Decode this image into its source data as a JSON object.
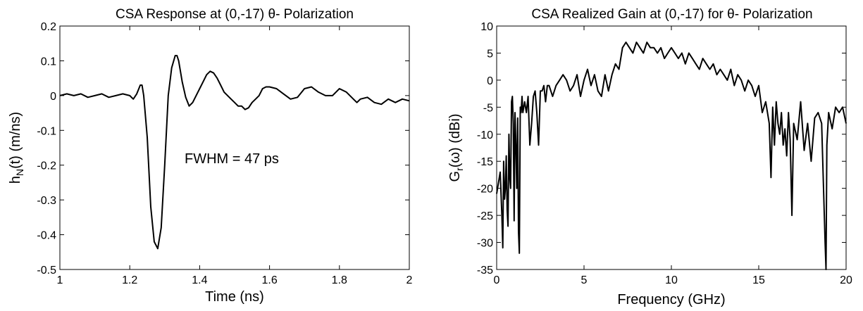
{
  "chart_data": [
    {
      "type": "line",
      "title": "CSA Response at (0,-17) θ- Polarization",
      "xlabel": "Time (ns)",
      "ylabel": "hN(t) (m/ns)",
      "ylabel_main": "h",
      "ylabel_sub": "N",
      "ylabel_rest": "(t) (m/ns)",
      "xlim": [
        1,
        2
      ],
      "ylim": [
        -0.5,
        0.2
      ],
      "xticks": [
        1,
        1.2,
        1.4,
        1.6,
        1.8,
        2
      ],
      "xtick_labels": [
        "1",
        "1.2",
        "1.4",
        "1.6",
        "1.8",
        "2"
      ],
      "yticks": [
        -0.5,
        -0.4,
        -0.3,
        -0.2,
        -0.1,
        0,
        0.1,
        0.2
      ],
      "ytick_labels": [
        "-0.5",
        "-0.4",
        "-0.3",
        "-0.2",
        "-0.1",
        "0",
        "0.1",
        "0.2"
      ],
      "grid": false,
      "annotation": "FWHM = 47 ps",
      "series": [
        {
          "x": [
            1.0,
            1.02,
            1.04,
            1.06,
            1.08,
            1.1,
            1.12,
            1.14,
            1.16,
            1.18,
            1.2,
            1.21,
            1.22,
            1.23,
            1.235,
            1.24,
            1.25,
            1.26,
            1.27,
            1.28,
            1.29,
            1.3,
            1.31,
            1.32,
            1.33,
            1.335,
            1.34,
            1.35,
            1.36,
            1.37,
            1.38,
            1.39,
            1.4,
            1.41,
            1.42,
            1.43,
            1.44,
            1.45,
            1.46,
            1.47,
            1.48,
            1.49,
            1.5,
            1.51,
            1.52,
            1.53,
            1.54,
            1.55,
            1.56,
            1.57,
            1.58,
            1.59,
            1.6,
            1.62,
            1.64,
            1.66,
            1.68,
            1.7,
            1.72,
            1.74,
            1.76,
            1.78,
            1.8,
            1.82,
            1.84,
            1.85,
            1.86,
            1.88,
            1.9,
            1.92,
            1.94,
            1.96,
            1.98,
            2.0
          ],
          "y": [
            0.0,
            0.005,
            0.0,
            0.005,
            -0.005,
            0.0,
            0.005,
            -0.005,
            0.0,
            0.005,
            0.0,
            -0.01,
            0.005,
            0.03,
            0.03,
            0.0,
            -0.12,
            -0.32,
            -0.42,
            -0.44,
            -0.38,
            -0.2,
            0.0,
            0.08,
            0.115,
            0.115,
            0.1,
            0.04,
            -0.005,
            -0.03,
            -0.02,
            0.0,
            0.02,
            0.04,
            0.06,
            0.07,
            0.065,
            0.05,
            0.03,
            0.01,
            0.0,
            -0.01,
            -0.02,
            -0.03,
            -0.03,
            -0.04,
            -0.035,
            -0.02,
            -0.01,
            0.0,
            0.02,
            0.025,
            0.025,
            0.02,
            0.005,
            -0.01,
            -0.005,
            0.02,
            0.025,
            0.01,
            0.0,
            0.0,
            0.02,
            0.01,
            -0.01,
            -0.02,
            -0.01,
            -0.005,
            -0.02,
            -0.025,
            -0.01,
            -0.02,
            -0.01,
            -0.015
          ]
        }
      ]
    },
    {
      "type": "line",
      "title": "CSA Realized Gain at (0,-17) for θ- Polarization",
      "xlabel": "Frequency (GHz)",
      "ylabel": "Gr(ω) (dBi)",
      "ylabel_main": "G",
      "ylabel_sub": "r",
      "ylabel_rest": "(ω) (dBi)",
      "xlim": [
        0,
        20
      ],
      "ylim": [
        -35,
        10
      ],
      "xticks": [
        0,
        5,
        10,
        15,
        20
      ],
      "xtick_labels": [
        "0",
        "5",
        "10",
        "15",
        "20"
      ],
      "yticks": [
        -35,
        -30,
        -25,
        -20,
        -15,
        -10,
        -5,
        0,
        5,
        10
      ],
      "ytick_labels": [
        "-35",
        "-30",
        "-25",
        "-20",
        "-15",
        "-10",
        "-5",
        "0",
        "5",
        "10"
      ],
      "grid": false,
      "series": [
        {
          "x": [
            0.0,
            0.1,
            0.2,
            0.3,
            0.35,
            0.4,
            0.45,
            0.5,
            0.55,
            0.6,
            0.65,
            0.7,
            0.75,
            0.8,
            0.85,
            0.9,
            0.95,
            1.0,
            1.05,
            1.1,
            1.15,
            1.2,
            1.25,
            1.3,
            1.35,
            1.4,
            1.45,
            1.5,
            1.6,
            1.7,
            1.8,
            1.9,
            2.0,
            2.1,
            2.2,
            2.3,
            2.4,
            2.5,
            2.6,
            2.7,
            2.8,
            2.9,
            3.0,
            3.2,
            3.4,
            3.6,
            3.8,
            4.0,
            4.2,
            4.4,
            4.6,
            4.8,
            5.0,
            5.2,
            5.4,
            5.6,
            5.8,
            6.0,
            6.2,
            6.4,
            6.6,
            6.8,
            7.0,
            7.2,
            7.4,
            7.6,
            7.8,
            8.0,
            8.2,
            8.4,
            8.6,
            8.8,
            9.0,
            9.2,
            9.4,
            9.6,
            9.8,
            10.0,
            10.2,
            10.4,
            10.6,
            10.8,
            11.0,
            11.2,
            11.4,
            11.6,
            11.8,
            12.0,
            12.2,
            12.4,
            12.6,
            12.8,
            13.0,
            13.2,
            13.4,
            13.6,
            13.8,
            14.0,
            14.2,
            14.4,
            14.6,
            14.8,
            15.0,
            15.2,
            15.4,
            15.6,
            15.7,
            15.8,
            15.9,
            16.0,
            16.1,
            16.2,
            16.3,
            16.4,
            16.5,
            16.6,
            16.7,
            16.8,
            16.9,
            17.0,
            17.2,
            17.4,
            17.6,
            17.8,
            18.0,
            18.2,
            18.4,
            18.6,
            18.8,
            18.85,
            18.9,
            19.0,
            19.2,
            19.4,
            19.6,
            19.8,
            20.0
          ],
          "y": [
            -21,
            -19,
            -17,
            -25,
            -31,
            -15,
            -22,
            -20,
            -14,
            -24,
            -27,
            -10,
            -18,
            -20,
            -4,
            -3,
            -8,
            -26,
            -6,
            -12,
            -20,
            -7,
            -28,
            -32,
            -5,
            -6,
            -3,
            -6,
            -4,
            -6,
            -3,
            -12,
            -8,
            -3,
            -2,
            -6,
            -12,
            -2,
            -2,
            -1,
            -4,
            -1,
            -1,
            -3,
            -1,
            0,
            1,
            0,
            -2,
            -1,
            1,
            -3,
            0,
            2,
            -1,
            1,
            -2,
            -3,
            1,
            -2,
            1,
            3,
            2,
            6,
            7,
            6,
            5,
            7,
            6,
            5,
            7,
            6,
            6,
            5,
            6,
            4,
            5,
            6,
            5,
            4,
            5,
            3,
            5,
            4,
            3,
            2,
            4,
            3,
            2,
            3,
            1,
            2,
            1,
            0,
            2,
            -1,
            1,
            0,
            -2,
            0,
            -1,
            -3,
            -1,
            -6,
            -4,
            -8,
            -18,
            -5,
            -12,
            -4,
            -8,
            -10,
            -6,
            -12,
            -9,
            -14,
            -6,
            -11,
            -25,
            -8,
            -11,
            -4,
            -13,
            -8,
            -15,
            -7,
            -6,
            -8,
            -30,
            -38,
            -12,
            -6,
            -9,
            -5,
            -6,
            -5,
            -8
          ]
        }
      ]
    }
  ]
}
